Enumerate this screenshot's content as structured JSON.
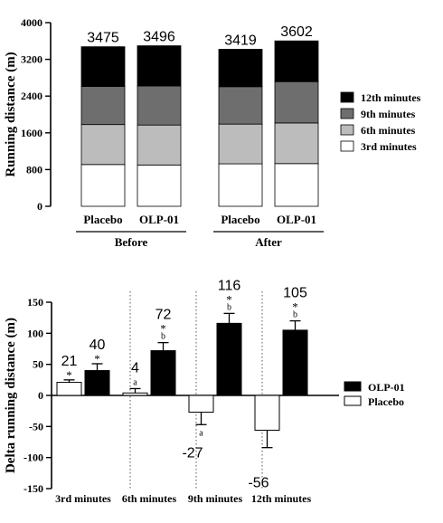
{
  "colors": {
    "black": "#000000",
    "dark_gray": "#6e6e6e",
    "light_gray": "#bcbcbc",
    "white": "#ffffff"
  },
  "chart_data": [
    {
      "type": "bar",
      "stacked": true,
      "categories": [
        "Placebo",
        "OLP-01",
        "Placebo",
        "OLP-01"
      ],
      "groups": [
        {
          "label": "Before",
          "members": [
            0,
            1
          ]
        },
        {
          "label": "After",
          "members": [
            2,
            3
          ]
        }
      ],
      "series": [
        {
          "name": "3rd minutes",
          "color": "#ffffff",
          "values": [
            910,
            900,
            925,
            930
          ]
        },
        {
          "name": "6th minutes",
          "color": "#bcbcbc",
          "values": [
            870,
            870,
            865,
            885
          ]
        },
        {
          "name": "9th minutes",
          "color": "#6e6e6e",
          "values": [
            830,
            850,
            815,
            900
          ]
        },
        {
          "name": "12th minutes",
          "color": "#000000",
          "values": [
            865,
            876,
            814,
            887
          ]
        }
      ],
      "totals": [
        "3475",
        "3496",
        "3419",
        "3602"
      ],
      "ylabel": "Running distance (m)",
      "ylim": [
        0,
        4000
      ],
      "yticks": [
        "0",
        "800",
        "1600",
        "2400",
        "3200",
        "4000"
      ],
      "legend_order": [
        3,
        2,
        1,
        0
      ],
      "legend_position": "right"
    },
    {
      "type": "bar",
      "categories": [
        "3rd minutes",
        "6th minutes",
        "9th minutes",
        "12th minutes"
      ],
      "series": [
        {
          "name": "Placebo",
          "color": "#ffffff",
          "values": [
            21,
            4,
            -27,
            -56
          ],
          "errors": [
            4,
            7,
            20,
            28
          ],
          "labels": [
            "21",
            "4",
            "-27",
            "-56"
          ],
          "marks": [
            "*",
            "a",
            "a",
            ""
          ]
        },
        {
          "name": "OLP-01",
          "color": "#000000",
          "values": [
            40,
            72,
            116,
            105
          ],
          "errors": [
            11,
            13,
            16,
            15
          ],
          "labels": [
            "40",
            "72",
            "116",
            "105"
          ],
          "marks": [
            "*",
            "*\nb",
            "*\nb",
            "*\nb"
          ]
        }
      ],
      "ylabel": "Delta running distance (m)",
      "ylim": [
        -150,
        150
      ],
      "yticks": [
        "-150",
        "-100",
        "-50",
        "0",
        "50",
        "100",
        "150"
      ],
      "legend_order": [
        1,
        0
      ],
      "legend_position": "right",
      "dotted_separators": true
    }
  ]
}
